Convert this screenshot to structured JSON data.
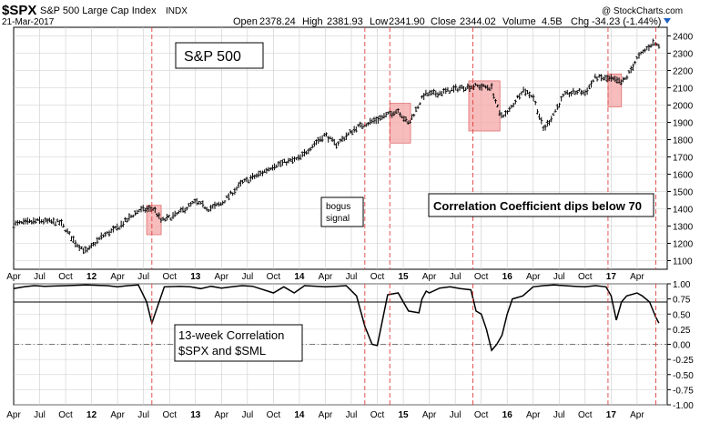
{
  "header": {
    "symbol": "$SPX",
    "name": "S&P 500 Large Cap Index",
    "exchange": "INDX",
    "date": "21-Mar-2017",
    "watermark": "@ StockCharts.com",
    "open_label": "Open",
    "open": "2378.24",
    "high_label": "High",
    "high": "2381.93",
    "low_label": "Low",
    "low": "2341.90",
    "close_label": "Close",
    "close": "2344.02",
    "volume_label": "Volume",
    "volume": "4.5B",
    "chg_label": "Chg",
    "chg": "-34.23 (-1.44%)",
    "chg_arrow_color": "#1f5fbf"
  },
  "annotations": {
    "title_box": "S&P 500",
    "bogus_line1": "bogus",
    "bogus_line2": "signal",
    "dips_note": "Correlation Coefficient dips below 70",
    "corr_line1": "13-week Correlation",
    "corr_line2": "$SPX and $SML"
  },
  "colors": {
    "price_bars": "#000000",
    "highlight_fill": "#f4a6a6",
    "highlight_edge": "#e07070",
    "signal_line": "#e04040",
    "dips_text": "#e00000",
    "bogus_text": "#0000c0",
    "grid": "#cccccc"
  },
  "chart_data": [
    {
      "type": "bar",
      "title": "S&P 500",
      "ylim": [
        1050,
        2450
      ],
      "y_ticks": [
        "2400",
        "2300",
        "2200",
        "2100",
        "2000",
        "1900",
        "1800",
        "1700",
        "1600",
        "1500",
        "1400",
        "1300",
        "1200",
        "1100"
      ],
      "x_ticks": [
        "Apr",
        "Jul",
        "Oct",
        "12",
        "Apr",
        "Jul",
        "Oct",
        "13",
        "Apr",
        "Jul",
        "Oct",
        "14",
        "Apr",
        "Jul",
        "Oct",
        "15",
        "Apr",
        "Jul",
        "Oct",
        "16",
        "Apr",
        "Jul",
        "Oct",
        "17",
        "Apr"
      ],
      "series": [
        {
          "name": "$SPX",
          "x": [
            2011.0,
            2011.25,
            2011.45,
            2011.6,
            2011.7,
            2011.85,
            2012.0,
            2012.2,
            2012.35,
            2012.42,
            2012.55,
            2012.75,
            2012.88,
            2013.0,
            2013.2,
            2013.4,
            2013.5,
            2013.75,
            2013.9,
            2014.0,
            2014.1,
            2014.3,
            2014.55,
            2014.7,
            2014.8,
            2014.95,
            2015.1,
            2015.3,
            2015.45,
            2015.6,
            2015.68,
            2015.75,
            2015.9,
            2016.0,
            2016.1,
            2016.15,
            2016.3,
            2016.45,
            2016.5,
            2016.6,
            2016.75,
            2016.85,
            2016.9,
            2017.0,
            2017.15,
            2017.21
          ],
          "values": [
            1310,
            1330,
            1320,
            1200,
            1150,
            1240,
            1290,
            1390,
            1400,
            1330,
            1360,
            1440,
            1400,
            1430,
            1550,
            1610,
            1650,
            1690,
            1780,
            1830,
            1770,
            1870,
            1930,
            1970,
            1890,
            2060,
            2070,
            2100,
            2110,
            2100,
            1940,
            1950,
            2090,
            2050,
            1860,
            1900,
            2060,
            2080,
            2070,
            2160,
            2150,
            2130,
            2160,
            2270,
            2360,
            2344
          ]
        }
      ]
    },
    {
      "type": "line",
      "title": "13-week Correlation $SPX and $SML",
      "ylim": [
        -1.0,
        1.0
      ],
      "reference_line": 0.7,
      "zero_line": 0.0,
      "y_ticks": [
        "1.00",
        "0.75",
        "0.50",
        "0.25",
        "0.00",
        "-0.25",
        "-0.50",
        "-0.75",
        "-1.00"
      ],
      "x_ticks": [
        "Apr",
        "Jul",
        "Oct",
        "12",
        "Apr",
        "Jul",
        "Oct",
        "13",
        "Apr",
        "Jul",
        "Oct",
        "14",
        "Apr",
        "Jul",
        "Oct",
        "15",
        "Apr",
        "Jul",
        "Oct",
        "16",
        "Apr",
        "Jul",
        "Oct",
        "17",
        "Apr"
      ],
      "series": [
        {
          "name": "13-week Correlation",
          "x": [
            2011.0,
            2011.1,
            2011.2,
            2011.3,
            2011.5,
            2011.7,
            2011.9,
            2012.0,
            2012.1,
            2012.2,
            2012.28,
            2012.33,
            2012.38,
            2012.45,
            2012.6,
            2012.7,
            2012.8,
            2012.9,
            2013.0,
            2013.1,
            2013.2,
            2013.3,
            2013.5,
            2013.6,
            2013.7,
            2013.8,
            2014.0,
            2014.1,
            2014.2,
            2014.3,
            2014.38,
            2014.45,
            2014.5,
            2014.6,
            2014.7,
            2014.8,
            2014.9,
            2014.93,
            2014.97,
            2015.0,
            2015.1,
            2015.2,
            2015.3,
            2015.4,
            2015.45,
            2015.5,
            2015.55,
            2015.6,
            2015.65,
            2015.7,
            2015.75,
            2015.8,
            2015.9,
            2016.0,
            2016.1,
            2016.2,
            2016.3,
            2016.4,
            2016.5,
            2016.6,
            2016.7,
            2016.75,
            2016.8,
            2016.85,
            2016.9,
            2017.0,
            2017.05,
            2017.12,
            2017.18,
            2017.21
          ],
          "values": [
            0.92,
            0.95,
            0.97,
            0.96,
            0.97,
            0.98,
            0.97,
            0.95,
            0.97,
            0.98,
            0.7,
            0.35,
            0.6,
            0.95,
            0.96,
            0.95,
            0.92,
            0.96,
            0.93,
            0.95,
            0.97,
            0.96,
            0.85,
            0.95,
            0.85,
            0.97,
            0.95,
            0.96,
            0.97,
            0.8,
            0.3,
            0.0,
            -0.02,
            0.82,
            0.85,
            0.55,
            0.52,
            0.75,
            0.88,
            0.85,
            0.93,
            0.95,
            0.92,
            0.9,
            0.55,
            0.5,
            0.25,
            -0.1,
            0.0,
            0.15,
            0.5,
            0.75,
            0.8,
            0.95,
            0.97,
            0.98,
            0.97,
            0.96,
            0.95,
            0.97,
            0.95,
            0.8,
            0.4,
            0.7,
            0.8,
            0.85,
            0.8,
            0.7,
            0.45,
            0.35
          ]
        }
      ]
    }
  ]
}
